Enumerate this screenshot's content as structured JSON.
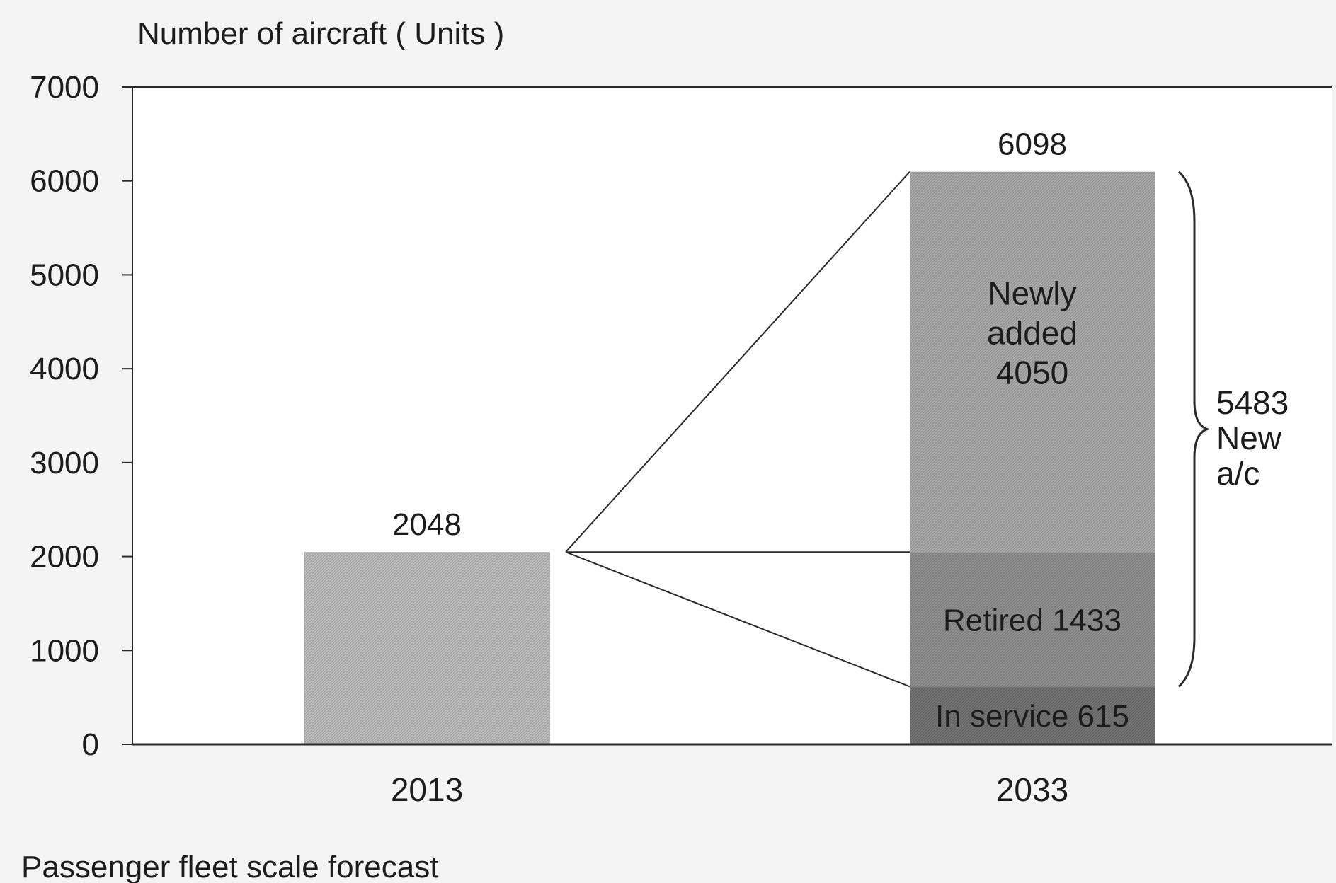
{
  "chart_data": {
    "type": "bar",
    "ylabel": "Number of aircraft ( Units )",
    "caption": "Passenger fleet scale forecast",
    "ylim": [
      0,
      7000
    ],
    "yticks": [
      0,
      1000,
      2000,
      3000,
      4000,
      5000,
      6000,
      7000
    ],
    "categories": [
      "2013",
      "2033"
    ],
    "bars": [
      {
        "category": "2013",
        "total_label": "2048",
        "segments": [
          {
            "value": 2048,
            "label": "",
            "color": "#b2b2b2"
          }
        ]
      },
      {
        "category": "2033",
        "total_label": "6098",
        "segments": [
          {
            "value": 615,
            "label": "In service 615",
            "color": "#6e6e6e"
          },
          {
            "value": 1433,
            "label": "Retired 1433",
            "color": "#8e8e8e"
          },
          {
            "value": 4050,
            "label_lines": [
              "Newly",
              "added",
              "4050"
            ],
            "color": "#a5a5a5"
          }
        ]
      }
    ],
    "annotation": {
      "lines": [
        "5483",
        "New",
        "a/c"
      ]
    },
    "grid": false
  }
}
